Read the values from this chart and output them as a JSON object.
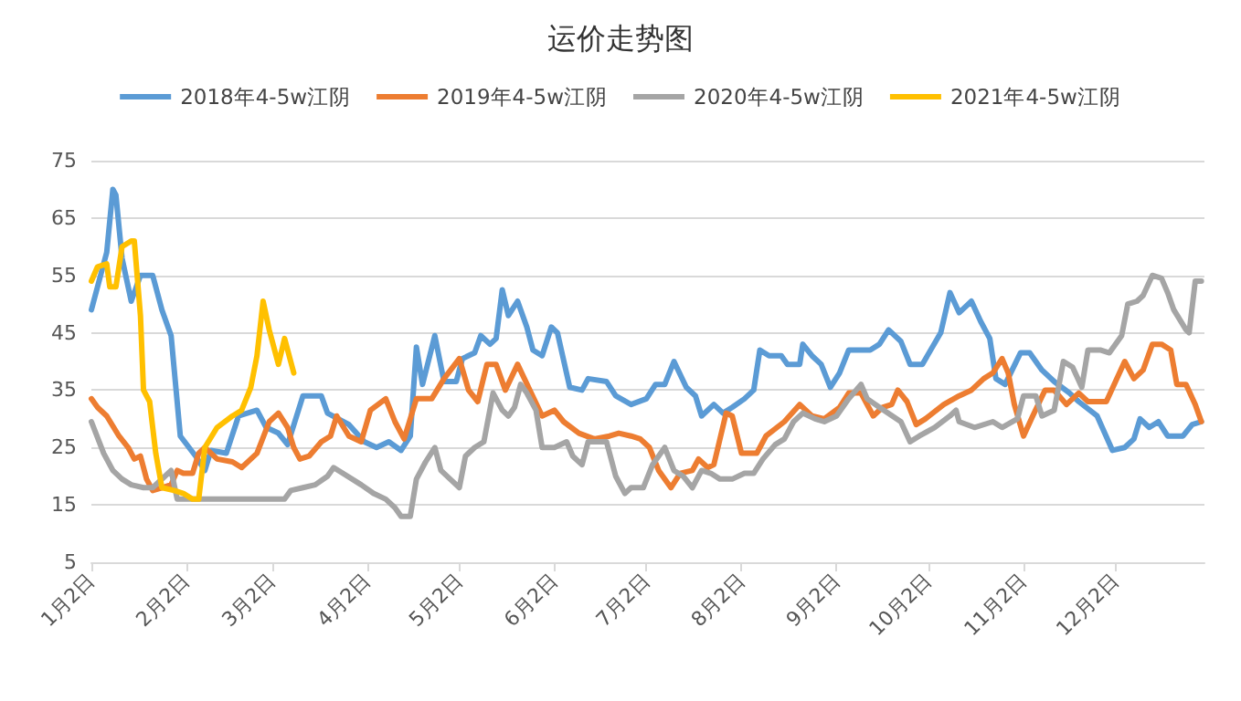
{
  "chart_data": {
    "type": "line",
    "title": "运价走势图",
    "legend": "top",
    "grid": "y",
    "marker": "none",
    "line_style": "solid",
    "xlim": [
      "--01-02",
      "--12-31"
    ],
    "xticks": [
      {
        "value": "--01-02",
        "label": "1月2日"
      },
      {
        "value": "--02-02",
        "label": "2月2日"
      },
      {
        "value": "--03-02",
        "label": "3月2日"
      },
      {
        "value": "--04-02",
        "label": "4月2日"
      },
      {
        "value": "--05-02",
        "label": "5月2日"
      },
      {
        "value": "--06-02",
        "label": "6月2日"
      },
      {
        "value": "--07-02",
        "label": "7月2日"
      },
      {
        "value": "--08-02",
        "label": "8月2日"
      },
      {
        "value": "--09-02",
        "label": "9月2日"
      },
      {
        "value": "--10-02",
        "label": "10月2日"
      },
      {
        "value": "--11-02",
        "label": "11月2日"
      },
      {
        "value": "--12-02",
        "label": "12月2日"
      }
    ],
    "ylim": [
      5,
      75
    ],
    "yticks": [
      5,
      15,
      25,
      35,
      45,
      55,
      65,
      75
    ],
    "series": [
      {
        "name": "2018年4-5w江阴",
        "color": "#5b9bd5",
        "x": [
          "--01-02",
          "--01-07",
          "--01-09",
          "--01-10",
          "--01-12",
          "--01-15",
          "--01-18",
          "--01-22",
          "--01-25",
          "--01-28",
          "--01-31",
          "--02-05",
          "--02-08",
          "--02-10",
          "--02-15",
          "--02-19",
          "--02-25",
          "--02-28",
          "--03-04",
          "--03-07",
          "--03-12",
          "--03-18",
          "--03-20",
          "--03-27",
          "--04-01",
          "--04-05",
          "--04-09",
          "--04-13",
          "--04-16",
          "--04-18",
          "--04-20",
          "--04-24",
          "--04-27",
          "--05-01",
          "--05-03",
          "--05-07",
          "--05-09",
          "--05-12",
          "--05-14",
          "--05-16",
          "--05-18",
          "--05-21",
          "--05-24",
          "--05-26",
          "--05-29",
          "--06-01",
          "--06-03",
          "--06-07",
          "--06-11",
          "--06-13",
          "--06-19",
          "--06-22",
          "--06-27",
          "--07-02",
          "--07-05",
          "--07-08",
          "--07-11",
          "--07-15",
          "--07-18",
          "--07-20",
          "--07-24",
          "--07-27",
          "--07-30",
          "--08-03",
          "--08-06",
          "--08-08",
          "--08-11",
          "--08-15",
          "--08-17",
          "--08-21",
          "--08-22",
          "--08-25",
          "--08-28",
          "--08-31",
          "--09-03",
          "--09-06",
          "--09-13",
          "--09-16",
          "--09-19",
          "--09-23",
          "--09-26",
          "--09-30",
          "--10-06",
          "--10-09",
          "--10-12",
          "--10-16",
          "--10-19",
          "--10-22",
          "--10-24",
          "--10-27",
          "--11-01",
          "--11-04",
          "--11-08",
          "--11-12",
          "--11-17",
          "--11-20",
          "--11-26",
          "--12-01",
          "--12-05",
          "--12-08",
          "--12-10",
          "--12-13",
          "--12-16",
          "--12-19",
          "--12-24",
          "--12-27",
          "--12-30"
        ],
        "values": [
          49,
          59,
          70,
          69,
          58,
          50.5,
          55,
          55,
          49,
          44.5,
          27,
          23.5,
          21,
          24.5,
          24,
          30.5,
          31.5,
          28.5,
          27.5,
          25.5,
          34,
          34,
          31,
          29,
          26,
          25,
          26,
          24.5,
          27,
          42.5,
          36,
          44.5,
          36.5,
          36.5,
          40.5,
          41.5,
          44.5,
          43,
          44,
          52.5,
          48,
          50.5,
          46,
          42,
          41,
          46,
          45,
          35.5,
          35,
          37,
          36.5,
          34,
          32.5,
          33.5,
          36,
          36,
          40,
          35.5,
          34,
          30.5,
          32.5,
          31,
          32,
          33.5,
          35,
          42,
          41,
          41,
          39.5,
          39.5,
          43,
          41,
          39.5,
          35.5,
          38,
          42,
          42,
          43,
          45.5,
          43.5,
          39.5,
          39.5,
          45,
          52,
          48.5,
          50.5,
          47,
          44,
          37,
          36,
          41.5,
          41.5,
          38.5,
          36.5,
          34.5,
          33,
          30.5,
          24.5,
          25,
          26.5,
          30,
          28.5,
          29.5,
          27,
          27,
          29,
          29.5
        ]
      },
      {
        "name": "2019年4-5w江阴",
        "color": "#ed7d31",
        "x": [
          "--01-02",
          "--01-04",
          "--01-07",
          "--01-11",
          "--01-14",
          "--01-16",
          "--01-18",
          "--01-20",
          "--01-22",
          "--01-25",
          "--01-28",
          "--01-30",
          "--02-01",
          "--02-04",
          "--02-06",
          "--02-08",
          "--02-12",
          "--02-17",
          "--02-20",
          "--02-25",
          "--03-01",
          "--03-04",
          "--03-07",
          "--03-09",
          "--03-11",
          "--03-14",
          "--03-18",
          "--03-21",
          "--03-23",
          "--03-27",
          "--03-31",
          "--04-03",
          "--04-08",
          "--04-11",
          "--04-14",
          "--04-18",
          "--04-23",
          "--04-27",
          "--05-02",
          "--05-05",
          "--05-08",
          "--05-11",
          "--05-14",
          "--05-17",
          "--05-21",
          "--05-25",
          "--05-29",
          "--06-02",
          "--06-05",
          "--06-10",
          "--06-15",
          "--06-20",
          "--06-23",
          "--06-27",
          "--06-30",
          "--07-03",
          "--07-06",
          "--07-10",
          "--07-13",
          "--07-17",
          "--07-19",
          "--07-22",
          "--07-24",
          "--07-28",
          "--07-30",
          "--08-02",
          "--08-07",
          "--08-10",
          "--08-16",
          "--08-21",
          "--08-25",
          "--08-29",
          "--09-03",
          "--09-06",
          "--09-10",
          "--09-14",
          "--09-17",
          "--09-20",
          "--09-22",
          "--09-25",
          "--09-28",
          "--10-01",
          "--10-07",
          "--10-12",
          "--10-16",
          "--10-20",
          "--10-23",
          "--10-26",
          "--10-28",
          "--10-30",
          "--11-02",
          "--11-05",
          "--11-09",
          "--11-12",
          "--11-16",
          "--11-20",
          "--11-23",
          "--11-29",
          "--12-02",
          "--12-05",
          "--12-08",
          "--12-11",
          "--12-14",
          "--12-17",
          "--12-20",
          "--12-22",
          "--12-25",
          "--12-28",
          "--12-30"
        ],
        "values": [
          33.5,
          32,
          30.5,
          27,
          25,
          23,
          23.5,
          19.5,
          17.5,
          18,
          18.5,
          21,
          20.5,
          20.5,
          24,
          25,
          23,
          22.5,
          21.5,
          24,
          29.5,
          31,
          28.5,
          25,
          23,
          23.5,
          26,
          27,
          30.5,
          27,
          26,
          31.5,
          33.5,
          29.5,
          26.5,
          33.5,
          33.5,
          37,
          40.5,
          35,
          33,
          39.5,
          39.5,
          35,
          39.5,
          35,
          30.5,
          31.5,
          29.5,
          27.5,
          26.5,
          27,
          27.5,
          27,
          26.5,
          25,
          21,
          18,
          20.5,
          21,
          23,
          21.5,
          22,
          31,
          30.5,
          24,
          24,
          27,
          29.5,
          32.5,
          30.5,
          30,
          32,
          34.5,
          34.5,
          30.5,
          32,
          32.5,
          35,
          33,
          29,
          30,
          32.5,
          34,
          35,
          37,
          38,
          40.5,
          38,
          32.5,
          27,
          30.5,
          35,
          35,
          32.5,
          34.5,
          33,
          33,
          36.5,
          40,
          37,
          38.5,
          43,
          43,
          42,
          36,
          36,
          32.5,
          29.5
        ]
      },
      {
        "name": "2020年4-5w江阴",
        "color": "#a5a5a5",
        "x": [
          "--01-02",
          "--01-06",
          "--01-09",
          "--01-12",
          "--01-15",
          "--01-19",
          "--01-22",
          "--01-26",
          "--01-28",
          "--01-30",
          "--03-06",
          "--03-08",
          "--03-12",
          "--03-16",
          "--03-20",
          "--03-22",
          "--03-25",
          "--03-31",
          "--04-04",
          "--04-08",
          "--04-11",
          "--04-13",
          "--04-16",
          "--04-18",
          "--04-21",
          "--04-24",
          "--04-26",
          "--04-29",
          "--05-02",
          "--05-04",
          "--05-07",
          "--05-10",
          "--05-13",
          "--05-16",
          "--05-18",
          "--05-20",
          "--05-22",
          "--05-24",
          "--05-27",
          "--05-29",
          "--06-02",
          "--06-06",
          "--06-08",
          "--06-11",
          "--06-13",
          "--06-19",
          "--06-22",
          "--06-25",
          "--06-27",
          "--07-01",
          "--07-04",
          "--07-08",
          "--07-11",
          "--07-14",
          "--07-17",
          "--07-20",
          "--07-23",
          "--07-26",
          "--07-30",
          "--08-03",
          "--08-06",
          "--08-09",
          "--08-13",
          "--08-16",
          "--08-19",
          "--08-22",
          "--08-26",
          "--08-29",
          "--09-02",
          "--09-06",
          "--09-10",
          "--09-12",
          "--09-16",
          "--09-23",
          "--09-26",
          "--09-29",
          "--10-04",
          "--10-09",
          "--10-11",
          "--10-12",
          "--10-17",
          "--10-23",
          "--10-26",
          "--10-31",
          "--11-02",
          "--11-06",
          "--11-08",
          "--11-12",
          "--11-15",
          "--11-18",
          "--11-21",
          "--11-23",
          "--11-27",
          "--11-30",
          "--12-04",
          "--12-06",
          "--12-09",
          "--12-11",
          "--12-14",
          "--12-17",
          "--12-19",
          "--12-21",
          "--12-25",
          "--12-26",
          "--12-28",
          "--12-30"
        ],
        "values": [
          29.5,
          24,
          21,
          19.5,
          18.5,
          18,
          18,
          20,
          21,
          16,
          16,
          17.5,
          18,
          18.5,
          20,
          21.5,
          20.5,
          18.5,
          17,
          16,
          14.5,
          13,
          13,
          19.5,
          22.5,
          25,
          21,
          19.5,
          18,
          23.5,
          25,
          26,
          34.5,
          31.5,
          30.5,
          32,
          36,
          34.5,
          31.5,
          25,
          25,
          26,
          23.5,
          22,
          26,
          26,
          20,
          17,
          18,
          18,
          22,
          25,
          21,
          20,
          18,
          21,
          20.5,
          19.5,
          19.5,
          20.5,
          20.5,
          23,
          25.5,
          26.5,
          29.5,
          31,
          30,
          29.5,
          30.5,
          33.5,
          36,
          33.5,
          32,
          29.5,
          26,
          27,
          28.5,
          30.5,
          31.5,
          29.5,
          28.5,
          29.5,
          28.5,
          30,
          34,
          34,
          30.5,
          31.5,
          40,
          39,
          35.5,
          42,
          42,
          41.5,
          44.5,
          50,
          50.5,
          51.5,
          55,
          54.5,
          52,
          49,
          45.5,
          45,
          54,
          54
        ]
      },
      {
        "name": "2021年4-5w江阴",
        "color": "#ffc000",
        "x": [
          "--01-02",
          "--01-04",
          "--01-07",
          "--01-08",
          "--01-10",
          "--01-12",
          "--01-15",
          "--01-16",
          "--01-18",
          "--01-19",
          "--01-21",
          "--01-23",
          "--01-25",
          "--01-29",
          "--02-01",
          "--02-04",
          "--02-06",
          "--02-08",
          "--02-12",
          "--02-17",
          "--02-20",
          "--02-23",
          "--02-25",
          "--02-27",
          "--03-01",
          "--03-04",
          "--03-06",
          "--03-09"
        ],
        "values": [
          54,
          56.5,
          57,
          53,
          53,
          60,
          61,
          61,
          48,
          35,
          33,
          24,
          18,
          17.5,
          17,
          16,
          16,
          25,
          28.5,
          30.5,
          31.5,
          35.5,
          41,
          50.5,
          45.5,
          39.5,
          44,
          38
        ]
      }
    ]
  }
}
